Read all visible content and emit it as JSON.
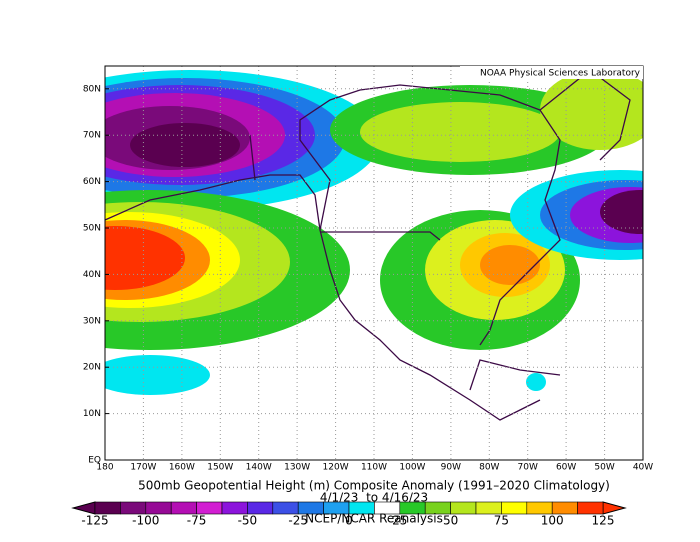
{
  "header": {
    "source": "NOAA Physical Sciences Laboratory"
  },
  "map": {
    "lat_labels": [
      "EQ",
      "10N",
      "20N",
      "30N",
      "40N",
      "50N",
      "60N",
      "70N",
      "80N"
    ],
    "lon_labels": [
      "180",
      "170W",
      "160W",
      "150W",
      "140W",
      "130W",
      "120W",
      "110W",
      "100W",
      "90W",
      "80W",
      "70W",
      "60W",
      "50W",
      "40W"
    ],
    "title": "500mb Geopotential Height (m) Composite Anomaly (1991–2020 Climatology)",
    "dates": "4/1/23  to 4/16/23",
    "credit": "NCEP/NCAR Reanalysis"
  },
  "colorbar": {
    "labels": [
      -125,
      -100,
      -75,
      -50,
      -25,
      0,
      25,
      50,
      75,
      100,
      125
    ],
    "colors": [
      "#5a0050",
      "#7a0a7a",
      "#960a96",
      "#b40fb4",
      "#d21ed2",
      "#8c14dc",
      "#5a28e6",
      "#3c50e6",
      "#1e78e6",
      "#1ea0f0",
      "#00e6f0",
      "#ffffff",
      "#28c828",
      "#78d21e",
      "#b4e61e",
      "#dcf01e",
      "#ffff00",
      "#ffc800",
      "#ff8c00",
      "#ff3200"
    ]
  }
}
